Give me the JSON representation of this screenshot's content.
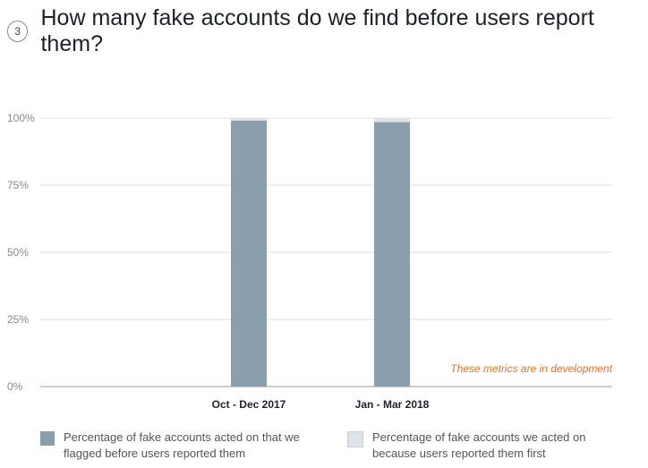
{
  "header": {
    "number": "3",
    "title": "How many fake accounts do we find before users report them?"
  },
  "chart_data": {
    "type": "bar",
    "stacked": true,
    "categories": [
      "Oct - Dec 2017",
      "Jan - Mar 2018"
    ],
    "series": [
      {
        "name": "Percentage of fake accounts acted on that we flagged before users reported them",
        "values": [
          99.1,
          98.5
        ],
        "color": "#8a9fab"
      },
      {
        "name": "Percentage of fake accounts we acted on because users reported them first",
        "values": [
          0.9,
          1.5
        ],
        "color": "#dde3e8"
      }
    ],
    "yticks": [
      "0%",
      "25%",
      "50%",
      "75%",
      "100%"
    ],
    "ylim": [
      0,
      100
    ],
    "grid": true,
    "legend_position": "bottom",
    "annotation": "These metrics are in development",
    "annotation_color": "#d9773a"
  }
}
